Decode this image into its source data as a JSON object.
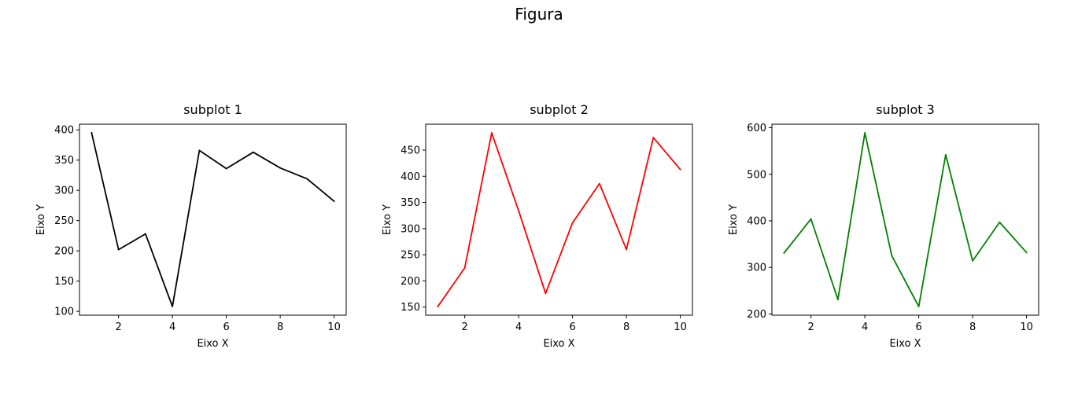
{
  "figure": {
    "title": "Figura"
  },
  "chart_data": [
    {
      "type": "line",
      "title": "subplot 1",
      "xlabel": "Eixo X",
      "ylabel": "Eixo Y",
      "x": [
        1,
        2,
        3,
        4,
        5,
        6,
        7,
        8,
        9,
        10
      ],
      "series": [
        {
          "values": [
            395,
            202,
            228,
            108,
            366,
            336,
            363,
            337,
            319,
            282
          ],
          "color": "#000000"
        }
      ],
      "xticks": [
        2,
        4,
        6,
        8,
        10
      ],
      "yticks": [
        100,
        150,
        200,
        250,
        300,
        350,
        400
      ],
      "xlim": [
        0.55,
        10.45
      ],
      "ylim": [
        93.65,
        409.35
      ],
      "grid": false
    },
    {
      "type": "line",
      "title": "subplot 2",
      "xlabel": "Eixo X",
      "ylabel": "Eixo Y",
      "x": [
        1,
        2,
        3,
        4,
        5,
        6,
        7,
        8,
        9,
        10
      ],
      "series": [
        {
          "values": [
            151,
            225,
            483,
            334,
            176,
            311,
            386,
            260,
            474,
            413
          ],
          "color": "#ff0000"
        }
      ],
      "xticks": [
        2,
        4,
        6,
        8,
        10
      ],
      "yticks": [
        150,
        200,
        250,
        300,
        350,
        400,
        450
      ],
      "xlim": [
        0.55,
        10.45
      ],
      "ylim": [
        134.4,
        499.6
      ],
      "grid": false
    },
    {
      "type": "line",
      "title": "subplot 3",
      "xlabel": "Eixo X",
      "ylabel": "Eixo Y",
      "x": [
        1,
        2,
        3,
        4,
        5,
        6,
        7,
        8,
        9,
        10
      ],
      "series": [
        {
          "values": [
            331,
            404,
            231,
            589,
            325,
            216,
            542,
            314,
            397,
            332
          ],
          "color": "#008000"
        }
      ],
      "xticks": [
        2,
        4,
        6,
        8,
        10
      ],
      "yticks": [
        200,
        300,
        400,
        500,
        600
      ],
      "xlim": [
        0.55,
        10.45
      ],
      "ylim": [
        197.35,
        607.65
      ],
      "grid": false
    }
  ]
}
